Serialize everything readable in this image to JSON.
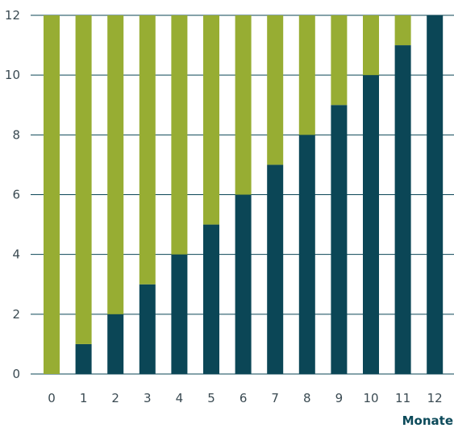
{
  "chart_data": {
    "type": "bar",
    "stacked": true,
    "categories": [
      "0",
      "1",
      "2",
      "3",
      "4",
      "5",
      "6",
      "7",
      "8",
      "9",
      "10",
      "11",
      "12"
    ],
    "series": [
      {
        "values": [
          0,
          1,
          2,
          3,
          4,
          5,
          6,
          7,
          8,
          9,
          10,
          11,
          12
        ],
        "color": "#0b4656"
      },
      {
        "values": [
          12,
          11,
          10,
          9,
          8,
          7,
          6,
          5,
          4,
          3,
          2,
          1,
          0
        ],
        "color": "#97ad33"
      }
    ],
    "title": "",
    "xlabel": "Monate",
    "ylabel": "",
    "ylim": [
      0,
      12
    ],
    "yticks": [
      0,
      2,
      4,
      6,
      8,
      10,
      12
    ],
    "grid": true,
    "legend": "none"
  }
}
